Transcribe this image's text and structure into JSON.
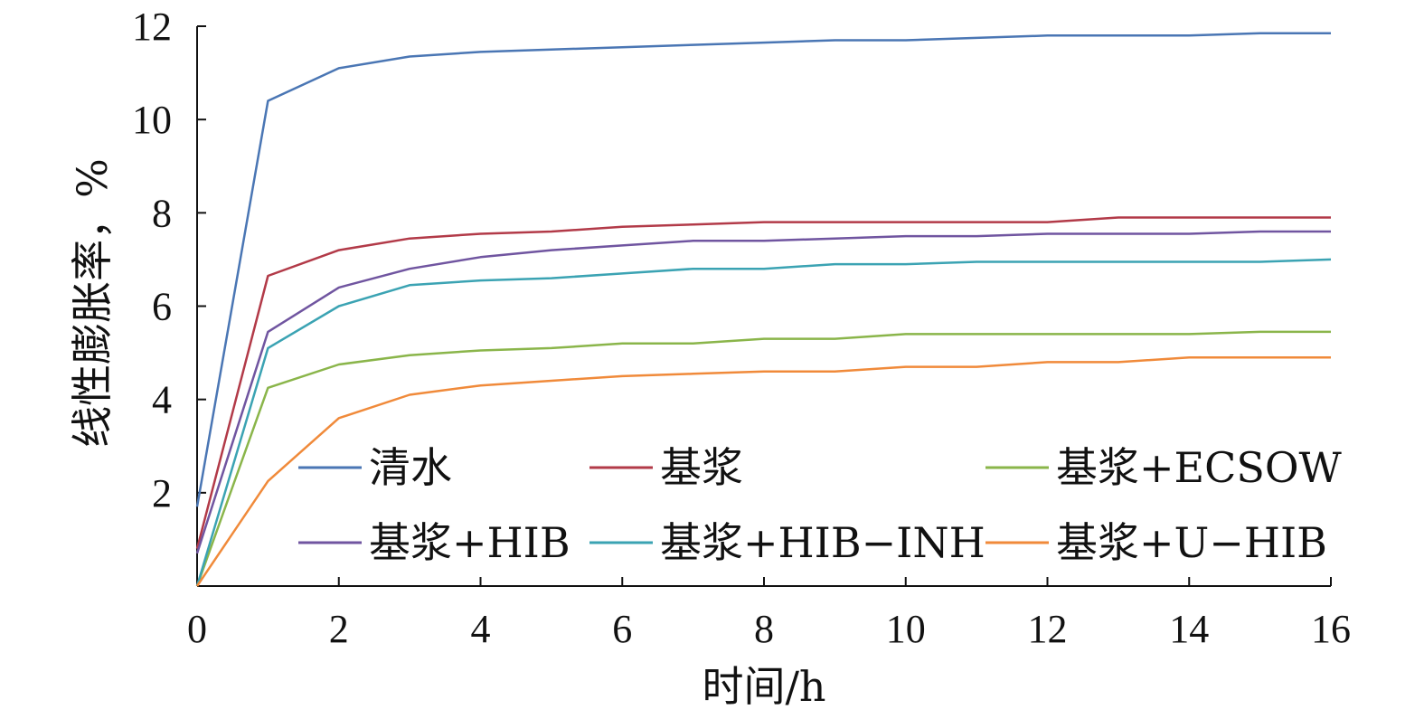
{
  "chart_data": {
    "type": "line",
    "title": "",
    "xlabel": "时间/h",
    "ylabel": "线性膨胀率，%",
    "xlim": [
      0,
      16
    ],
    "ylim": [
      0,
      12
    ],
    "x_ticks": [
      "0",
      "2",
      "4",
      "6",
      "8",
      "10",
      "12",
      "14",
      "16"
    ],
    "y_ticks": [
      "2",
      "4",
      "6",
      "8",
      "10",
      "12"
    ],
    "grid": false,
    "legend_position": "bottom-inside",
    "x": [
      0,
      1,
      2,
      3,
      4,
      5,
      6,
      7,
      8,
      9,
      10,
      11,
      12,
      13,
      14,
      15,
      16
    ],
    "series": [
      {
        "name": "清水",
        "color": "#4a76b4",
        "values": [
          1.7,
          10.4,
          11.1,
          11.35,
          11.45,
          11.5,
          11.55,
          11.6,
          11.65,
          11.7,
          11.7,
          11.75,
          11.8,
          11.8,
          11.8,
          11.85,
          11.85
        ]
      },
      {
        "name": "基浆",
        "color": "#b23a48",
        "values": [
          0.8,
          6.65,
          7.2,
          7.45,
          7.55,
          7.6,
          7.7,
          7.75,
          7.8,
          7.8,
          7.8,
          7.8,
          7.8,
          7.9,
          7.9,
          7.9,
          7.9
        ]
      },
      {
        "name": "基浆+ECSOW",
        "color": "#8ab54a",
        "values": [
          0.0,
          4.25,
          4.75,
          4.95,
          5.05,
          5.1,
          5.2,
          5.2,
          5.3,
          5.3,
          5.4,
          5.4,
          5.4,
          5.4,
          5.4,
          5.45,
          5.45
        ]
      },
      {
        "name": "基浆+HIB",
        "color": "#7055a0",
        "values": [
          0.7,
          5.45,
          6.4,
          6.8,
          7.05,
          7.2,
          7.3,
          7.4,
          7.4,
          7.45,
          7.5,
          7.5,
          7.55,
          7.55,
          7.55,
          7.6,
          7.6
        ]
      },
      {
        "name": "基浆+HIB−INH",
        "color": "#3ba3b3",
        "values": [
          0.0,
          5.1,
          6.0,
          6.45,
          6.55,
          6.6,
          6.7,
          6.8,
          6.8,
          6.9,
          6.9,
          6.95,
          6.95,
          6.95,
          6.95,
          6.95,
          7.0
        ]
      },
      {
        "name": "基浆+U−HIB",
        "color": "#f08a3a",
        "values": [
          0.0,
          2.25,
          3.6,
          4.1,
          4.3,
          4.4,
          4.5,
          4.55,
          4.6,
          4.6,
          4.7,
          4.7,
          4.8,
          4.8,
          4.9,
          4.9,
          4.9
        ]
      }
    ]
  }
}
